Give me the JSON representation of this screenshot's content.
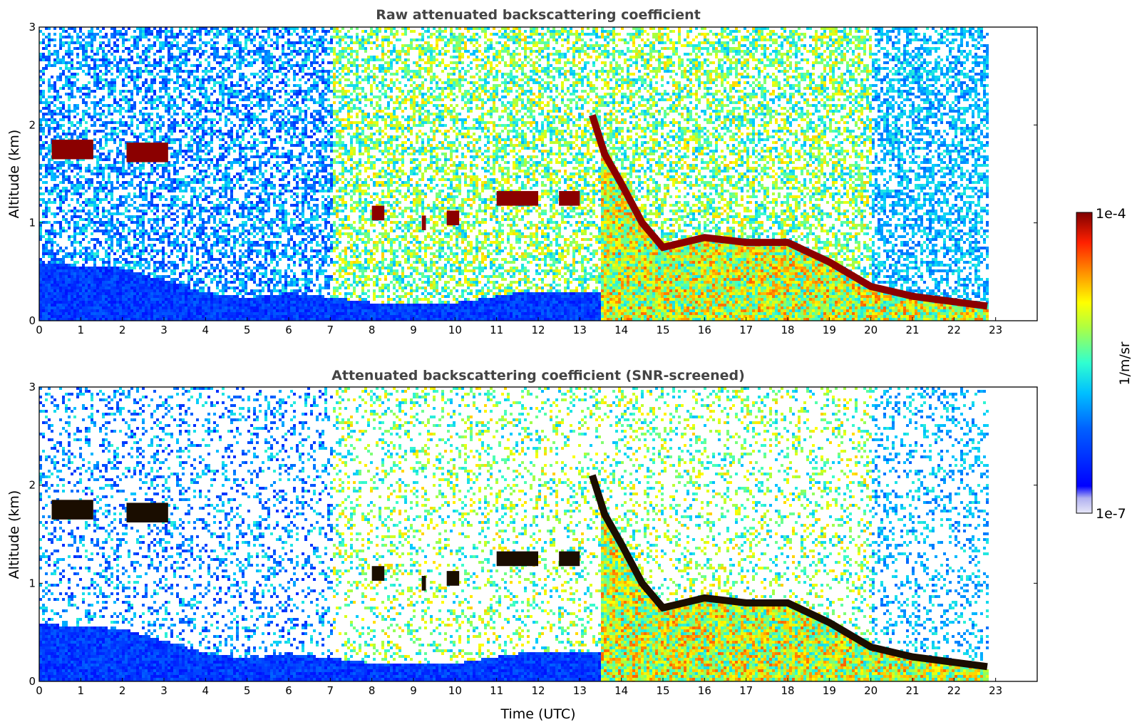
{
  "chart_data": [
    {
      "type": "heatmap",
      "title": "Raw attenuated backscattering coefficient",
      "xlabel": "",
      "ylabel": "Altitude (km)",
      "xlim": [
        0,
        24
      ],
      "ylim": [
        0,
        3
      ],
      "xticks": [
        "0",
        "1",
        "2",
        "3",
        "4",
        "5",
        "6",
        "7",
        "8",
        "9",
        "10",
        "11",
        "12",
        "13",
        "14",
        "15",
        "16",
        "17",
        "18",
        "19",
        "20",
        "21",
        "22",
        "23"
      ],
      "yticks": [
        "0",
        "1",
        "2",
        "3"
      ],
      "data_end_hour": 22.8,
      "features": {
        "aerosol_layer_top_km": [
          [
            0,
            0.6
          ],
          [
            2,
            0.55
          ],
          [
            4,
            0.3
          ],
          [
            5,
            0.25
          ],
          [
            6,
            0.3
          ],
          [
            8,
            0.2
          ],
          [
            10,
            0.2
          ],
          [
            11.5,
            0.3
          ]
        ],
        "clouds": [
          {
            "t0": 0.3,
            "t1": 1.3,
            "alt_km": 1.75,
            "thick_km": 0.2
          },
          {
            "t0": 2.1,
            "t1": 3.1,
            "alt_km": 1.72,
            "thick_km": 0.2
          },
          {
            "t0": 8.0,
            "t1": 8.3,
            "alt_km": 1.1,
            "thick_km": 0.15
          },
          {
            "t0": 9.2,
            "t1": 9.3,
            "alt_km": 1.0,
            "thick_km": 0.15
          },
          {
            "t0": 9.8,
            "t1": 10.1,
            "alt_km": 1.05,
            "thick_km": 0.15
          },
          {
            "t0": 11.0,
            "t1": 12.0,
            "alt_km": 1.25,
            "thick_km": 0.15
          },
          {
            "t0": 12.5,
            "t1": 13.0,
            "alt_km": 1.25,
            "thick_km": 0.15
          }
        ],
        "descending_cloud_base_km": [
          [
            13.3,
            2.1
          ],
          [
            13.6,
            1.7
          ],
          [
            14.0,
            1.4
          ],
          [
            14.5,
            1.0
          ],
          [
            15.0,
            0.75
          ],
          [
            16.0,
            0.85
          ],
          [
            17.0,
            0.8
          ],
          [
            18.0,
            0.8
          ],
          [
            19.0,
            0.6
          ],
          [
            20.0,
            0.35
          ],
          [
            21.0,
            0.25
          ],
          [
            22.8,
            0.15
          ]
        ]
      }
    },
    {
      "type": "heatmap",
      "title": "Attenuated backscattering coefficient (SNR-screened)",
      "xlabel": "Time (UTC)",
      "ylabel": "Altitude (km)",
      "xlim": [
        0,
        24
      ],
      "ylim": [
        0,
        3
      ],
      "xticks": [
        "0",
        "1",
        "2",
        "3",
        "4",
        "5",
        "6",
        "7",
        "8",
        "9",
        "10",
        "11",
        "12",
        "13",
        "14",
        "15",
        "16",
        "17",
        "18",
        "19",
        "20",
        "21",
        "22",
        "23"
      ],
      "yticks": [
        "0",
        "1",
        "2",
        "3"
      ],
      "data_end_hour": 22.8
    }
  ],
  "colorbar": {
    "label": "1/m/sr",
    "max_label": "1e-4",
    "min_label": "1e-7",
    "scale": "log",
    "colormap": "jet",
    "colors": [
      "#e8e8f8",
      "#c8c8f0",
      "#9090f0",
      "#0000ff",
      "#0050ff",
      "#00a0ff",
      "#00e0f0",
      "#40ffb0",
      "#a0ff50",
      "#ffff00",
      "#ffb000",
      "#ff5000",
      "#e00000",
      "#800000"
    ]
  }
}
